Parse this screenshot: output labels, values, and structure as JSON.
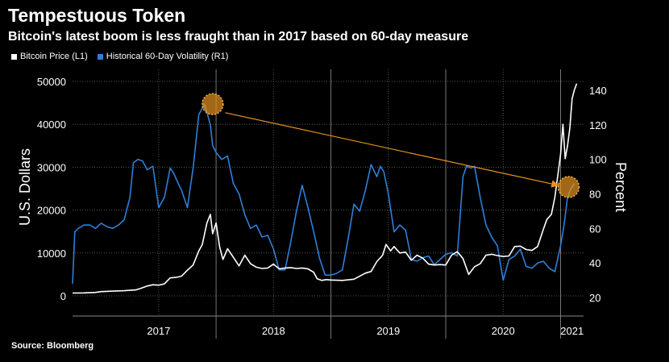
{
  "title": "Tempestuous Token",
  "subtitle": "Bitcoin's latest boom is less fraught than in 2017 based on 60-day measure",
  "source": "Source: Bloomberg",
  "colors": {
    "price": "#ffffff",
    "volatility": "#2f7fd8",
    "annotation": "#e8941e",
    "grid": "#555555"
  },
  "chart_data": {
    "type": "line",
    "legend": [
      "Bitcoin Price (L1)",
      "Historical 60-Day Volatility (R1)"
    ],
    "legend_position": "top-left",
    "ylabel_left": "U.S. Dollars",
    "ylabel_right": "Percent",
    "ylim_left": [
      0,
      50000
    ],
    "ylim_right": [
      20,
      140
    ],
    "yticks_left": [
      "0",
      "10000",
      "20000",
      "30000",
      "40000",
      "50000"
    ],
    "yticks_right": [
      "20",
      "40",
      "60",
      "80",
      "100",
      "120",
      "140"
    ],
    "xlim": [
      2016.75,
      2021.2
    ],
    "year_labels": [
      "2017",
      "2018",
      "2019",
      "2020",
      "2021"
    ],
    "grid": true,
    "series": [
      {
        "name": "Bitcoin Price (L1)",
        "axis": "left",
        "x": [
          2016.75,
          2016.85,
          2016.95,
          2017.0,
          2017.1,
          2017.2,
          2017.3,
          2017.35,
          2017.4,
          2017.45,
          2017.5,
          2017.55,
          2017.6,
          2017.65,
          2017.7,
          2017.75,
          2017.8,
          2017.85,
          2017.88,
          2017.92,
          2017.95,
          2017.97,
          2018.0,
          2018.03,
          2018.06,
          2018.1,
          2018.15,
          2018.2,
          2018.25,
          2018.3,
          2018.35,
          2018.4,
          2018.45,
          2018.5,
          2018.55,
          2018.6,
          2018.65,
          2018.7,
          2018.75,
          2018.8,
          2018.85,
          2018.88,
          2018.92,
          2018.96,
          2019.0,
          2019.1,
          2019.2,
          2019.3,
          2019.35,
          2019.4,
          2019.45,
          2019.48,
          2019.52,
          2019.55,
          2019.6,
          2019.65,
          2019.7,
          2019.75,
          2019.8,
          2019.85,
          2019.9,
          2019.95,
          2020.0,
          2020.05,
          2020.1,
          2020.15,
          2020.2,
          2020.25,
          2020.3,
          2020.35,
          2020.4,
          2020.45,
          2020.5,
          2020.55,
          2020.6,
          2020.65,
          2020.7,
          2020.75,
          2020.8,
          2020.85,
          2020.88,
          2020.92,
          2020.95,
          2020.98,
          2021.0,
          2021.02,
          2021.04,
          2021.06,
          2021.08,
          2021.1,
          2021.12,
          2021.14
        ],
        "values": [
          650,
          700,
          800,
          1000,
          1100,
          1200,
          1400,
          1800,
          2300,
          2600,
          2500,
          2800,
          4200,
          4300,
          4600,
          6000,
          7200,
          10500,
          12000,
          17000,
          19000,
          14500,
          17000,
          11500,
          8500,
          11000,
          9000,
          7000,
          9500,
          7500,
          6700,
          6400,
          6500,
          7400,
          6300,
          6500,
          6600,
          6400,
          6500,
          6300,
          5500,
          4000,
          3600,
          3800,
          3700,
          3600,
          3900,
          5300,
          5700,
          8000,
          9500,
          12000,
          10500,
          11500,
          10000,
          10200,
          8300,
          9500,
          8800,
          7400,
          7200,
          7300,
          7200,
          9500,
          10300,
          8700,
          5000,
          6800,
          7500,
          9500,
          9700,
          9400,
          9200,
          9300,
          11500,
          11600,
          10800,
          10600,
          11500,
          15500,
          17800,
          19000,
          23000,
          29000,
          33000,
          40000,
          32000,
          35000,
          39000,
          46000,
          48000,
          49500
        ]
      },
      {
        "name": "Historical 60-Day Volatility (R1)",
        "axis": "right",
        "x": [
          2016.75,
          2016.77,
          2016.8,
          2016.85,
          2016.9,
          2016.95,
          2017.0,
          2017.05,
          2017.1,
          2017.15,
          2017.2,
          2017.25,
          2017.28,
          2017.32,
          2017.36,
          2017.4,
          2017.45,
          2017.5,
          2017.55,
          2017.6,
          2017.63,
          2017.67,
          2017.7,
          2017.75,
          2017.8,
          2017.85,
          2017.9,
          2017.95,
          2017.97,
          2018.0,
          2018.05,
          2018.1,
          2018.15,
          2018.2,
          2018.25,
          2018.3,
          2018.35,
          2018.4,
          2018.45,
          2018.5,
          2018.55,
          2018.6,
          2018.65,
          2018.7,
          2018.75,
          2018.8,
          2018.85,
          2018.9,
          2018.95,
          2019.0,
          2019.05,
          2019.1,
          2019.15,
          2019.2,
          2019.25,
          2019.3,
          2019.35,
          2019.4,
          2019.43,
          2019.46,
          2019.5,
          2019.55,
          2019.6,
          2019.65,
          2019.7,
          2019.75,
          2019.8,
          2019.85,
          2019.9,
          2019.95,
          2020.0,
          2020.05,
          2020.1,
          2020.15,
          2020.18,
          2020.22,
          2020.25,
          2020.3,
          2020.35,
          2020.4,
          2020.45,
          2020.5,
          2020.55,
          2020.6,
          2020.65,
          2020.7,
          2020.75,
          2020.8,
          2020.85,
          2020.9,
          2020.95,
          2021.0,
          2021.03,
          2021.06,
          2021.09,
          2021.12
        ],
        "values": [
          28,
          58,
          60,
          62,
          62,
          60,
          63,
          61,
          60,
          62,
          65,
          78,
          98,
          100,
          99,
          94,
          96,
          72,
          78,
          95,
          92,
          86,
          82,
          72,
          95,
          126,
          132,
          120,
          108,
          104,
          100,
          102,
          86,
          80,
          68,
          60,
          62,
          55,
          56,
          48,
          36,
          36,
          52,
          70,
          85,
          72,
          58,
          43,
          33,
          33,
          34,
          36,
          54,
          74,
          70,
          82,
          97,
          90,
          96,
          93,
          80,
          58,
          62,
          59,
          42,
          41,
          43,
          44,
          39,
          42,
          45,
          46,
          44,
          90,
          96,
          95,
          96,
          78,
          62,
          55,
          50,
          30,
          42,
          44,
          48,
          38,
          37,
          40,
          41,
          37,
          35,
          50,
          62,
          78,
          83,
          86
        ]
      }
    ],
    "annotations": [
      {
        "type": "circle",
        "axis": "right",
        "x": 2017.97,
        "y": 132
      },
      {
        "type": "circle",
        "axis": "right",
        "x": 2021.07,
        "y": 84
      },
      {
        "type": "arrow",
        "axis": "right",
        "from": [
          2018.08,
          127
        ],
        "to": [
          2020.98,
          85
        ]
      }
    ]
  }
}
